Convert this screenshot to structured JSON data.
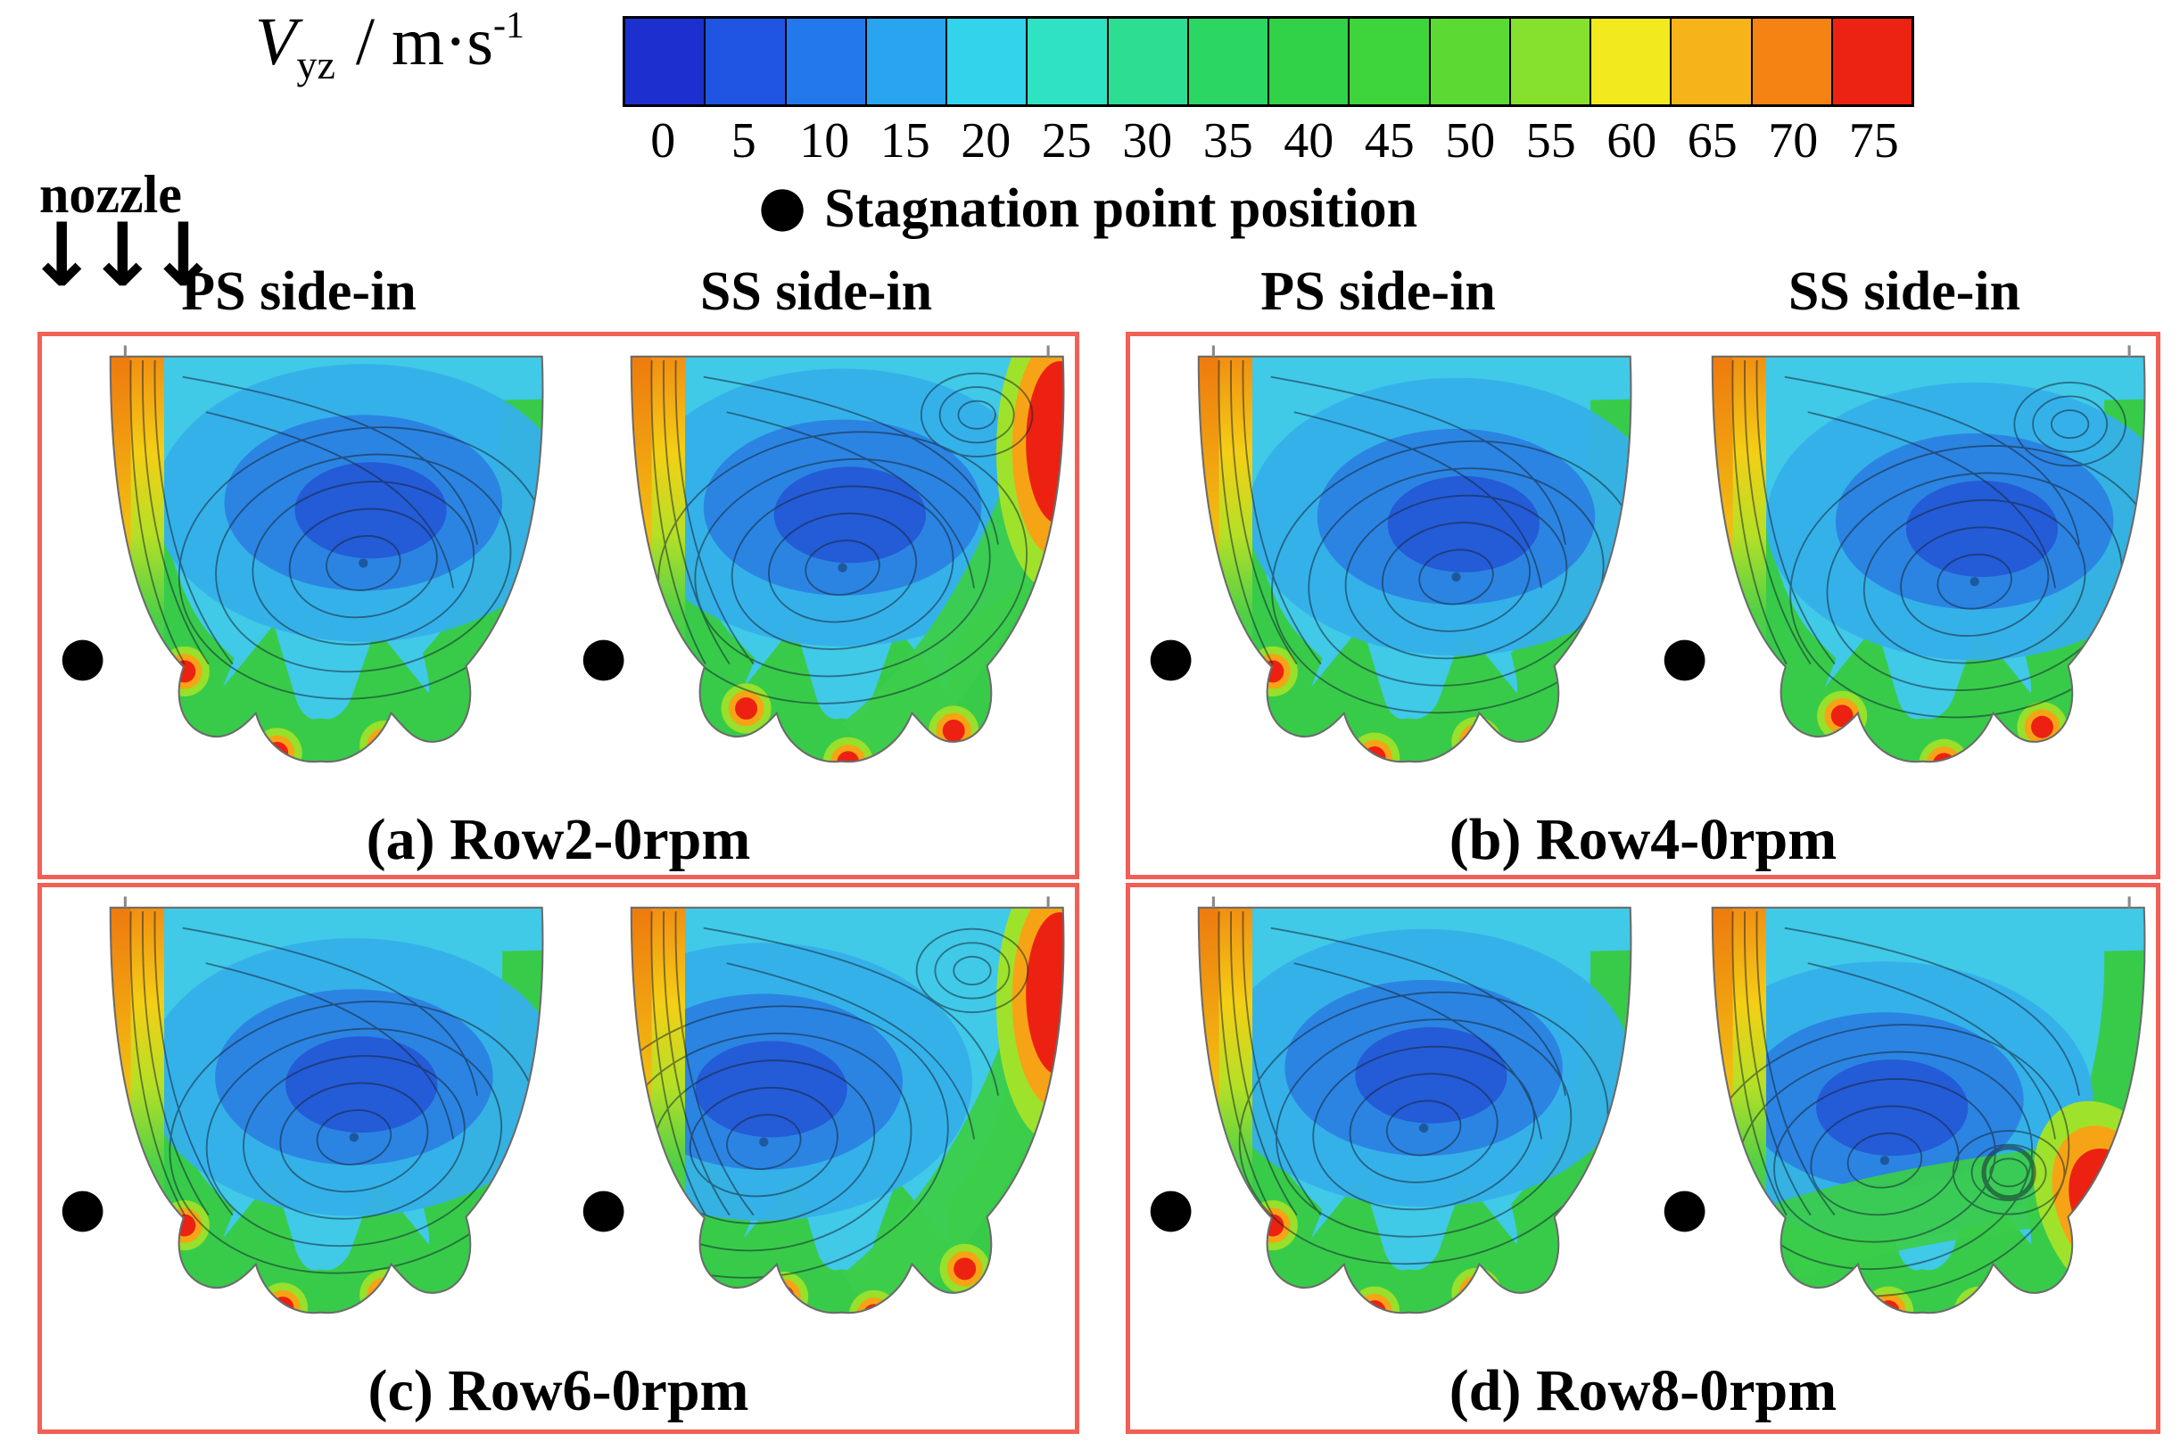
{
  "figure": {
    "colorbar": {
      "label": {
        "symbol": "V",
        "subscript": "yz",
        "units": " / m·s",
        "exponent": "-1"
      },
      "ticks": [
        "0",
        "5",
        "10",
        "15",
        "20",
        "25",
        "30",
        "35",
        "40",
        "45",
        "50",
        "55",
        "60",
        "65",
        "70",
        "75"
      ],
      "colors": [
        "#1b30cf",
        "#1f55e2",
        "#2379ec",
        "#29a4ef",
        "#33d3ec",
        "#2fe2c4",
        "#2cdd92",
        "#2bd662",
        "#31d148",
        "#3ed43b",
        "#5bda33",
        "#85e12d",
        "#f2ea1e",
        "#f6b41a",
        "#f48313",
        "#ec2312"
      ]
    },
    "legend": {
      "marker": "●",
      "text": "Stagnation point position"
    },
    "nozzle": {
      "label": "nozzle",
      "arrows": "↓↓↓"
    },
    "column_headers": [
      "PS side-in",
      "SS side-in",
      "PS side-in",
      "SS side-in"
    ],
    "panels": [
      {
        "id": "a",
        "caption": "(a) Row2-0rpm"
      },
      {
        "id": "b",
        "caption": "(b) Row4-0rpm"
      },
      {
        "id": "c",
        "caption": "(c) Row6-0rpm"
      },
      {
        "id": "d",
        "caption": "(d) Row8-0rpm"
      }
    ]
  },
  "chart_data": {
    "type": "heatmap",
    "quantity": "Vyz / m·s⁻¹",
    "colorbar_range": [
      0,
      75
    ],
    "colorbar_tick_step": 5,
    "marker_legend": "Stagnation point position",
    "panels": [
      {
        "caption": "(a) Row2-0rpm",
        "views": [
          "PS side-in",
          "SS side-in"
        ]
      },
      {
        "caption": "(b) Row4-0rpm",
        "views": [
          "PS side-in",
          "SS side-in"
        ]
      },
      {
        "caption": "(c) Row6-0rpm",
        "views": [
          "PS side-in",
          "SS side-in"
        ]
      },
      {
        "caption": "(d) Row8-0rpm",
        "views": [
          "PS side-in",
          "SS side-in"
        ]
      }
    ],
    "subplots": [
      {
        "panel": "a",
        "view": "PS",
        "vortex": [
          345,
          235
        ],
        "vortex2": null,
        "ring": false,
        "top_right_hotspot": false,
        "right_hotspot": false,
        "bottom_hotspots": [
          [
            152,
            352
          ],
          [
            252,
            440
          ],
          [
            368,
            432
          ]
        ]
      },
      {
        "panel": "a",
        "view": "SS",
        "vortex": [
          300,
          240
        ],
        "vortex2": [
          445,
          75
        ],
        "ring": false,
        "top_right_hotspot": true,
        "right_hotspot": false,
        "bottom_hotspots": [
          [
            196,
            392
          ],
          [
            306,
            450
          ],
          [
            420,
            416
          ]
        ]
      },
      {
        "panel": "b",
        "view": "PS",
        "vortex": [
          350,
          250
        ],
        "vortex2": null,
        "ring": false,
        "top_right_hotspot": false,
        "right_hotspot": false,
        "bottom_hotspots": [
          [
            152,
            352
          ],
          [
            262,
            445
          ],
          [
            372,
            428
          ]
        ]
      },
      {
        "panel": "b",
        "view": "SS",
        "vortex": [
          355,
          255
        ],
        "vortex2": [
          458,
          85
        ],
        "ring": false,
        "top_right_hotspot": false,
        "right_hotspot": false,
        "bottom_hotspots": [
          [
            212,
            400
          ],
          [
            322,
            452
          ],
          [
            428,
            412
          ]
        ]
      },
      {
        "panel": "c",
        "view": "PS",
        "vortex": [
          335,
          260
        ],
        "vortex2": null,
        "ring": false,
        "top_right_hotspot": false,
        "right_hotspot": false,
        "bottom_hotspots": [
          [
            152,
            355
          ],
          [
            258,
            444
          ],
          [
            368,
            430
          ]
        ]
      },
      {
        "panel": "c",
        "view": "SS",
        "vortex": [
          215,
          265
        ],
        "vortex2": [
          440,
          80
        ],
        "ring": false,
        "top_right_hotspot": true,
        "right_hotspot": false,
        "bottom_hotspots": [
          [
            236,
            432
          ],
          [
            334,
            452
          ],
          [
            432,
            402
          ]
        ]
      },
      {
        "panel": "d",
        "view": "PS",
        "vortex": [
          315,
          250
        ],
        "vortex2": null,
        "ring": false,
        "top_right_hotspot": false,
        "right_hotspot": false,
        "bottom_hotspots": [
          [
            152,
            355
          ],
          [
            262,
            448
          ],
          [
            372,
            428
          ]
        ]
      },
      {
        "panel": "d",
        "view": "SS",
        "vortex": [
          258,
          285
        ],
        "vortex2": [
          392,
          298
        ],
        "ring": true,
        "top_right_hotspot": false,
        "right_hotspot": true,
        "bottom_hotspots": [
          [
            262,
            448
          ],
          [
            360,
            448
          ]
        ]
      }
    ]
  }
}
